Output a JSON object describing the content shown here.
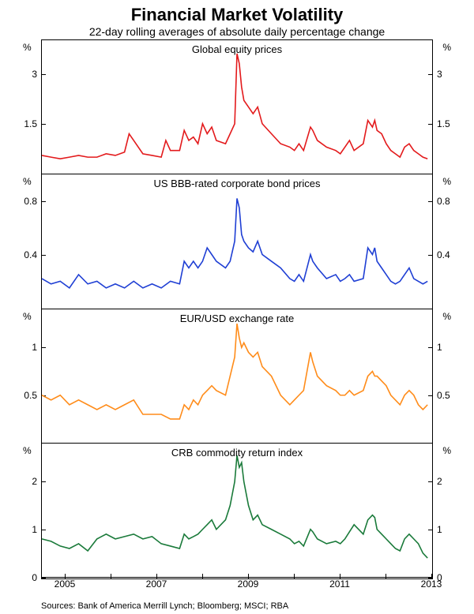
{
  "title": "Financial Market Volatility",
  "subtitle": "22-day rolling averages of absolute daily percentage change",
  "sources": "Sources: Bank of America Merrill Lynch; Bloomberg; MSCI; RBA",
  "x": {
    "min": 2004.5,
    "max": 2013,
    "ticks": [
      2005,
      2007,
      2009,
      2011,
      2013
    ]
  },
  "panels": [
    {
      "title": "Global equity prices",
      "color": "#e31a1c",
      "ymin": 0,
      "ymax": 4.0,
      "unit": "%",
      "ticks": [
        1.5,
        3.0
      ],
      "series": [
        [
          2004.5,
          0.55
        ],
        [
          2004.7,
          0.5
        ],
        [
          2004.9,
          0.45
        ],
        [
          2005.1,
          0.5
        ],
        [
          2005.3,
          0.55
        ],
        [
          2005.5,
          0.5
        ],
        [
          2005.7,
          0.5
        ],
        [
          2005.9,
          0.6
        ],
        [
          2006.1,
          0.55
        ],
        [
          2006.3,
          0.65
        ],
        [
          2006.4,
          1.2
        ],
        [
          2006.5,
          1.0
        ],
        [
          2006.7,
          0.6
        ],
        [
          2006.9,
          0.55
        ],
        [
          2007.1,
          0.5
        ],
        [
          2007.2,
          1.0
        ],
        [
          2007.3,
          0.7
        ],
        [
          2007.5,
          0.7
        ],
        [
          2007.6,
          1.3
        ],
        [
          2007.7,
          1.0
        ],
        [
          2007.8,
          1.1
        ],
        [
          2007.9,
          0.9
        ],
        [
          2008.0,
          1.5
        ],
        [
          2008.1,
          1.2
        ],
        [
          2008.2,
          1.4
        ],
        [
          2008.3,
          1.0
        ],
        [
          2008.5,
          0.9
        ],
        [
          2008.6,
          1.2
        ],
        [
          2008.7,
          1.5
        ],
        [
          2008.75,
          3.6
        ],
        [
          2008.8,
          3.3
        ],
        [
          2008.85,
          2.6
        ],
        [
          2008.9,
          2.2
        ],
        [
          2009.0,
          2.0
        ],
        [
          2009.1,
          1.8
        ],
        [
          2009.2,
          2.0
        ],
        [
          2009.3,
          1.5
        ],
        [
          2009.5,
          1.2
        ],
        [
          2009.7,
          0.9
        ],
        [
          2009.9,
          0.8
        ],
        [
          2010.0,
          0.7
        ],
        [
          2010.1,
          0.9
        ],
        [
          2010.2,
          0.7
        ],
        [
          2010.35,
          1.4
        ],
        [
          2010.4,
          1.3
        ],
        [
          2010.5,
          1.0
        ],
        [
          2010.7,
          0.8
        ],
        [
          2010.9,
          0.7
        ],
        [
          2011.0,
          0.6
        ],
        [
          2011.1,
          0.8
        ],
        [
          2011.2,
          1.0
        ],
        [
          2011.3,
          0.7
        ],
        [
          2011.5,
          0.9
        ],
        [
          2011.6,
          1.6
        ],
        [
          2011.65,
          1.5
        ],
        [
          2011.7,
          1.4
        ],
        [
          2011.75,
          1.6
        ],
        [
          2011.8,
          1.3
        ],
        [
          2011.9,
          1.2
        ],
        [
          2012.0,
          0.9
        ],
        [
          2012.1,
          0.7
        ],
        [
          2012.2,
          0.6
        ],
        [
          2012.3,
          0.5
        ],
        [
          2012.4,
          0.8
        ],
        [
          2012.5,
          0.9
        ],
        [
          2012.6,
          0.7
        ],
        [
          2012.7,
          0.6
        ],
        [
          2012.8,
          0.5
        ],
        [
          2012.9,
          0.45
        ]
      ]
    },
    {
      "title": "US BBB-rated corporate bond prices",
      "color": "#1f3fd4",
      "ymin": 0,
      "ymax": 1.0,
      "unit": "%",
      "ticks": [
        0.4,
        0.8
      ],
      "series": [
        [
          2004.5,
          0.22
        ],
        [
          2004.7,
          0.18
        ],
        [
          2004.9,
          0.2
        ],
        [
          2005.1,
          0.15
        ],
        [
          2005.3,
          0.25
        ],
        [
          2005.5,
          0.18
        ],
        [
          2005.7,
          0.2
        ],
        [
          2005.9,
          0.15
        ],
        [
          2006.1,
          0.18
        ],
        [
          2006.3,
          0.15
        ],
        [
          2006.5,
          0.2
        ],
        [
          2006.7,
          0.15
        ],
        [
          2006.9,
          0.18
        ],
        [
          2007.1,
          0.15
        ],
        [
          2007.3,
          0.2
        ],
        [
          2007.5,
          0.18
        ],
        [
          2007.6,
          0.35
        ],
        [
          2007.7,
          0.3
        ],
        [
          2007.8,
          0.35
        ],
        [
          2007.9,
          0.3
        ],
        [
          2008.0,
          0.35
        ],
        [
          2008.1,
          0.45
        ],
        [
          2008.2,
          0.4
        ],
        [
          2008.3,
          0.35
        ],
        [
          2008.5,
          0.3
        ],
        [
          2008.6,
          0.35
        ],
        [
          2008.7,
          0.5
        ],
        [
          2008.75,
          0.82
        ],
        [
          2008.8,
          0.75
        ],
        [
          2008.85,
          0.55
        ],
        [
          2008.9,
          0.5
        ],
        [
          2009.0,
          0.45
        ],
        [
          2009.1,
          0.42
        ],
        [
          2009.2,
          0.5
        ],
        [
          2009.3,
          0.4
        ],
        [
          2009.5,
          0.35
        ],
        [
          2009.7,
          0.3
        ],
        [
          2009.9,
          0.22
        ],
        [
          2010.0,
          0.2
        ],
        [
          2010.1,
          0.25
        ],
        [
          2010.2,
          0.2
        ],
        [
          2010.35,
          0.4
        ],
        [
          2010.4,
          0.35
        ],
        [
          2010.5,
          0.3
        ],
        [
          2010.7,
          0.22
        ],
        [
          2010.9,
          0.25
        ],
        [
          2011.0,
          0.2
        ],
        [
          2011.1,
          0.22
        ],
        [
          2011.2,
          0.25
        ],
        [
          2011.3,
          0.2
        ],
        [
          2011.5,
          0.22
        ],
        [
          2011.6,
          0.45
        ],
        [
          2011.7,
          0.4
        ],
        [
          2011.75,
          0.45
        ],
        [
          2011.8,
          0.35
        ],
        [
          2011.9,
          0.3
        ],
        [
          2012.0,
          0.25
        ],
        [
          2012.1,
          0.2
        ],
        [
          2012.2,
          0.18
        ],
        [
          2012.3,
          0.2
        ],
        [
          2012.4,
          0.25
        ],
        [
          2012.5,
          0.3
        ],
        [
          2012.6,
          0.22
        ],
        [
          2012.7,
          0.2
        ],
        [
          2012.8,
          0.18
        ],
        [
          2012.9,
          0.2
        ]
      ]
    },
    {
      "title": "EUR/USD exchange rate",
      "color": "#ff8c1a",
      "ymin": 0,
      "ymax": 1.4,
      "unit": "%",
      "ticks": [
        0.5,
        1.0
      ],
      "series": [
        [
          2004.5,
          0.5
        ],
        [
          2004.7,
          0.45
        ],
        [
          2004.9,
          0.5
        ],
        [
          2005.1,
          0.4
        ],
        [
          2005.3,
          0.45
        ],
        [
          2005.5,
          0.4
        ],
        [
          2005.7,
          0.35
        ],
        [
          2005.9,
          0.4
        ],
        [
          2006.1,
          0.35
        ],
        [
          2006.3,
          0.4
        ],
        [
          2006.5,
          0.45
        ],
        [
          2006.7,
          0.3
        ],
        [
          2006.9,
          0.3
        ],
        [
          2007.1,
          0.3
        ],
        [
          2007.3,
          0.25
        ],
        [
          2007.5,
          0.25
        ],
        [
          2007.6,
          0.4
        ],
        [
          2007.7,
          0.35
        ],
        [
          2007.8,
          0.45
        ],
        [
          2007.9,
          0.4
        ],
        [
          2008.0,
          0.5
        ],
        [
          2008.1,
          0.55
        ],
        [
          2008.2,
          0.6
        ],
        [
          2008.3,
          0.55
        ],
        [
          2008.5,
          0.5
        ],
        [
          2008.6,
          0.7
        ],
        [
          2008.7,
          0.9
        ],
        [
          2008.75,
          1.25
        ],
        [
          2008.8,
          1.1
        ],
        [
          2008.85,
          1.0
        ],
        [
          2008.9,
          1.05
        ],
        [
          2009.0,
          0.95
        ],
        [
          2009.1,
          0.9
        ],
        [
          2009.2,
          0.95
        ],
        [
          2009.3,
          0.8
        ],
        [
          2009.5,
          0.7
        ],
        [
          2009.7,
          0.5
        ],
        [
          2009.9,
          0.4
        ],
        [
          2010.0,
          0.45
        ],
        [
          2010.1,
          0.5
        ],
        [
          2010.2,
          0.55
        ],
        [
          2010.35,
          0.95
        ],
        [
          2010.4,
          0.85
        ],
        [
          2010.5,
          0.7
        ],
        [
          2010.7,
          0.6
        ],
        [
          2010.9,
          0.55
        ],
        [
          2011.0,
          0.5
        ],
        [
          2011.1,
          0.5
        ],
        [
          2011.2,
          0.55
        ],
        [
          2011.3,
          0.5
        ],
        [
          2011.5,
          0.55
        ],
        [
          2011.6,
          0.7
        ],
        [
          2011.7,
          0.75
        ],
        [
          2011.75,
          0.7
        ],
        [
          2011.8,
          0.7
        ],
        [
          2011.9,
          0.65
        ],
        [
          2012.0,
          0.6
        ],
        [
          2012.1,
          0.5
        ],
        [
          2012.2,
          0.45
        ],
        [
          2012.3,
          0.4
        ],
        [
          2012.4,
          0.5
        ],
        [
          2012.5,
          0.55
        ],
        [
          2012.6,
          0.5
        ],
        [
          2012.7,
          0.4
        ],
        [
          2012.8,
          0.35
        ],
        [
          2012.9,
          0.4
        ]
      ]
    },
    {
      "title": "CRB commodity return index",
      "color": "#1a7a3a",
      "ymin": 0,
      "ymax": 2.8,
      "unit": "%",
      "ticks": [
        0,
        1,
        2
      ],
      "series": [
        [
          2004.5,
          0.8
        ],
        [
          2004.7,
          0.75
        ],
        [
          2004.9,
          0.65
        ],
        [
          2005.1,
          0.6
        ],
        [
          2005.3,
          0.7
        ],
        [
          2005.5,
          0.55
        ],
        [
          2005.7,
          0.8
        ],
        [
          2005.9,
          0.9
        ],
        [
          2006.1,
          0.8
        ],
        [
          2006.3,
          0.85
        ],
        [
          2006.5,
          0.9
        ],
        [
          2006.7,
          0.8
        ],
        [
          2006.9,
          0.85
        ],
        [
          2007.1,
          0.7
        ],
        [
          2007.3,
          0.65
        ],
        [
          2007.5,
          0.6
        ],
        [
          2007.6,
          0.9
        ],
        [
          2007.7,
          0.8
        ],
        [
          2007.8,
          0.85
        ],
        [
          2007.9,
          0.9
        ],
        [
          2008.0,
          1.0
        ],
        [
          2008.1,
          1.1
        ],
        [
          2008.2,
          1.2
        ],
        [
          2008.3,
          1.0
        ],
        [
          2008.5,
          1.2
        ],
        [
          2008.6,
          1.5
        ],
        [
          2008.7,
          2.0
        ],
        [
          2008.75,
          2.55
        ],
        [
          2008.8,
          2.3
        ],
        [
          2008.85,
          2.4
        ],
        [
          2008.9,
          2.0
        ],
        [
          2009.0,
          1.5
        ],
        [
          2009.1,
          1.2
        ],
        [
          2009.2,
          1.3
        ],
        [
          2009.3,
          1.1
        ],
        [
          2009.5,
          1.0
        ],
        [
          2009.7,
          0.9
        ],
        [
          2009.9,
          0.8
        ],
        [
          2010.0,
          0.7
        ],
        [
          2010.1,
          0.75
        ],
        [
          2010.2,
          0.65
        ],
        [
          2010.35,
          1.0
        ],
        [
          2010.4,
          0.95
        ],
        [
          2010.5,
          0.8
        ],
        [
          2010.7,
          0.7
        ],
        [
          2010.9,
          0.75
        ],
        [
          2011.0,
          0.7
        ],
        [
          2011.1,
          0.8
        ],
        [
          2011.2,
          0.95
        ],
        [
          2011.3,
          1.1
        ],
        [
          2011.5,
          0.9
        ],
        [
          2011.6,
          1.2
        ],
        [
          2011.7,
          1.3
        ],
        [
          2011.75,
          1.25
        ],
        [
          2011.8,
          1.0
        ],
        [
          2011.9,
          0.9
        ],
        [
          2012.0,
          0.8
        ],
        [
          2012.1,
          0.7
        ],
        [
          2012.2,
          0.6
        ],
        [
          2012.3,
          0.55
        ],
        [
          2012.4,
          0.8
        ],
        [
          2012.5,
          0.9
        ],
        [
          2012.6,
          0.8
        ],
        [
          2012.7,
          0.7
        ],
        [
          2012.8,
          0.5
        ],
        [
          2012.9,
          0.4
        ]
      ]
    }
  ]
}
